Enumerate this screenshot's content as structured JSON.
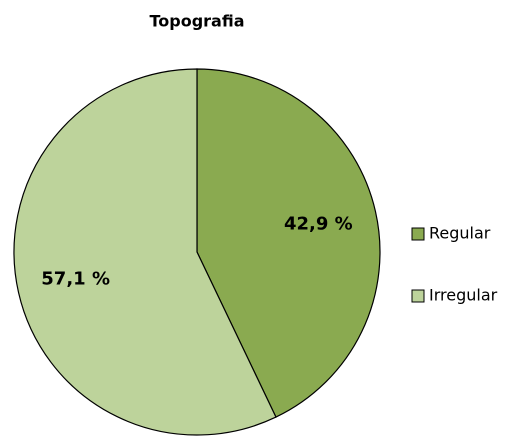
{
  "chart_data": {
    "type": "pie",
    "title": "Topografia",
    "categories": [
      "Regular",
      "Irregular"
    ],
    "values": [
      42.9,
      57.1
    ],
    "value_labels": [
      "42,9 %",
      "57,1 %"
    ],
    "colors": [
      "#8aaa50",
      "#bdd39b"
    ],
    "legend": "right"
  }
}
